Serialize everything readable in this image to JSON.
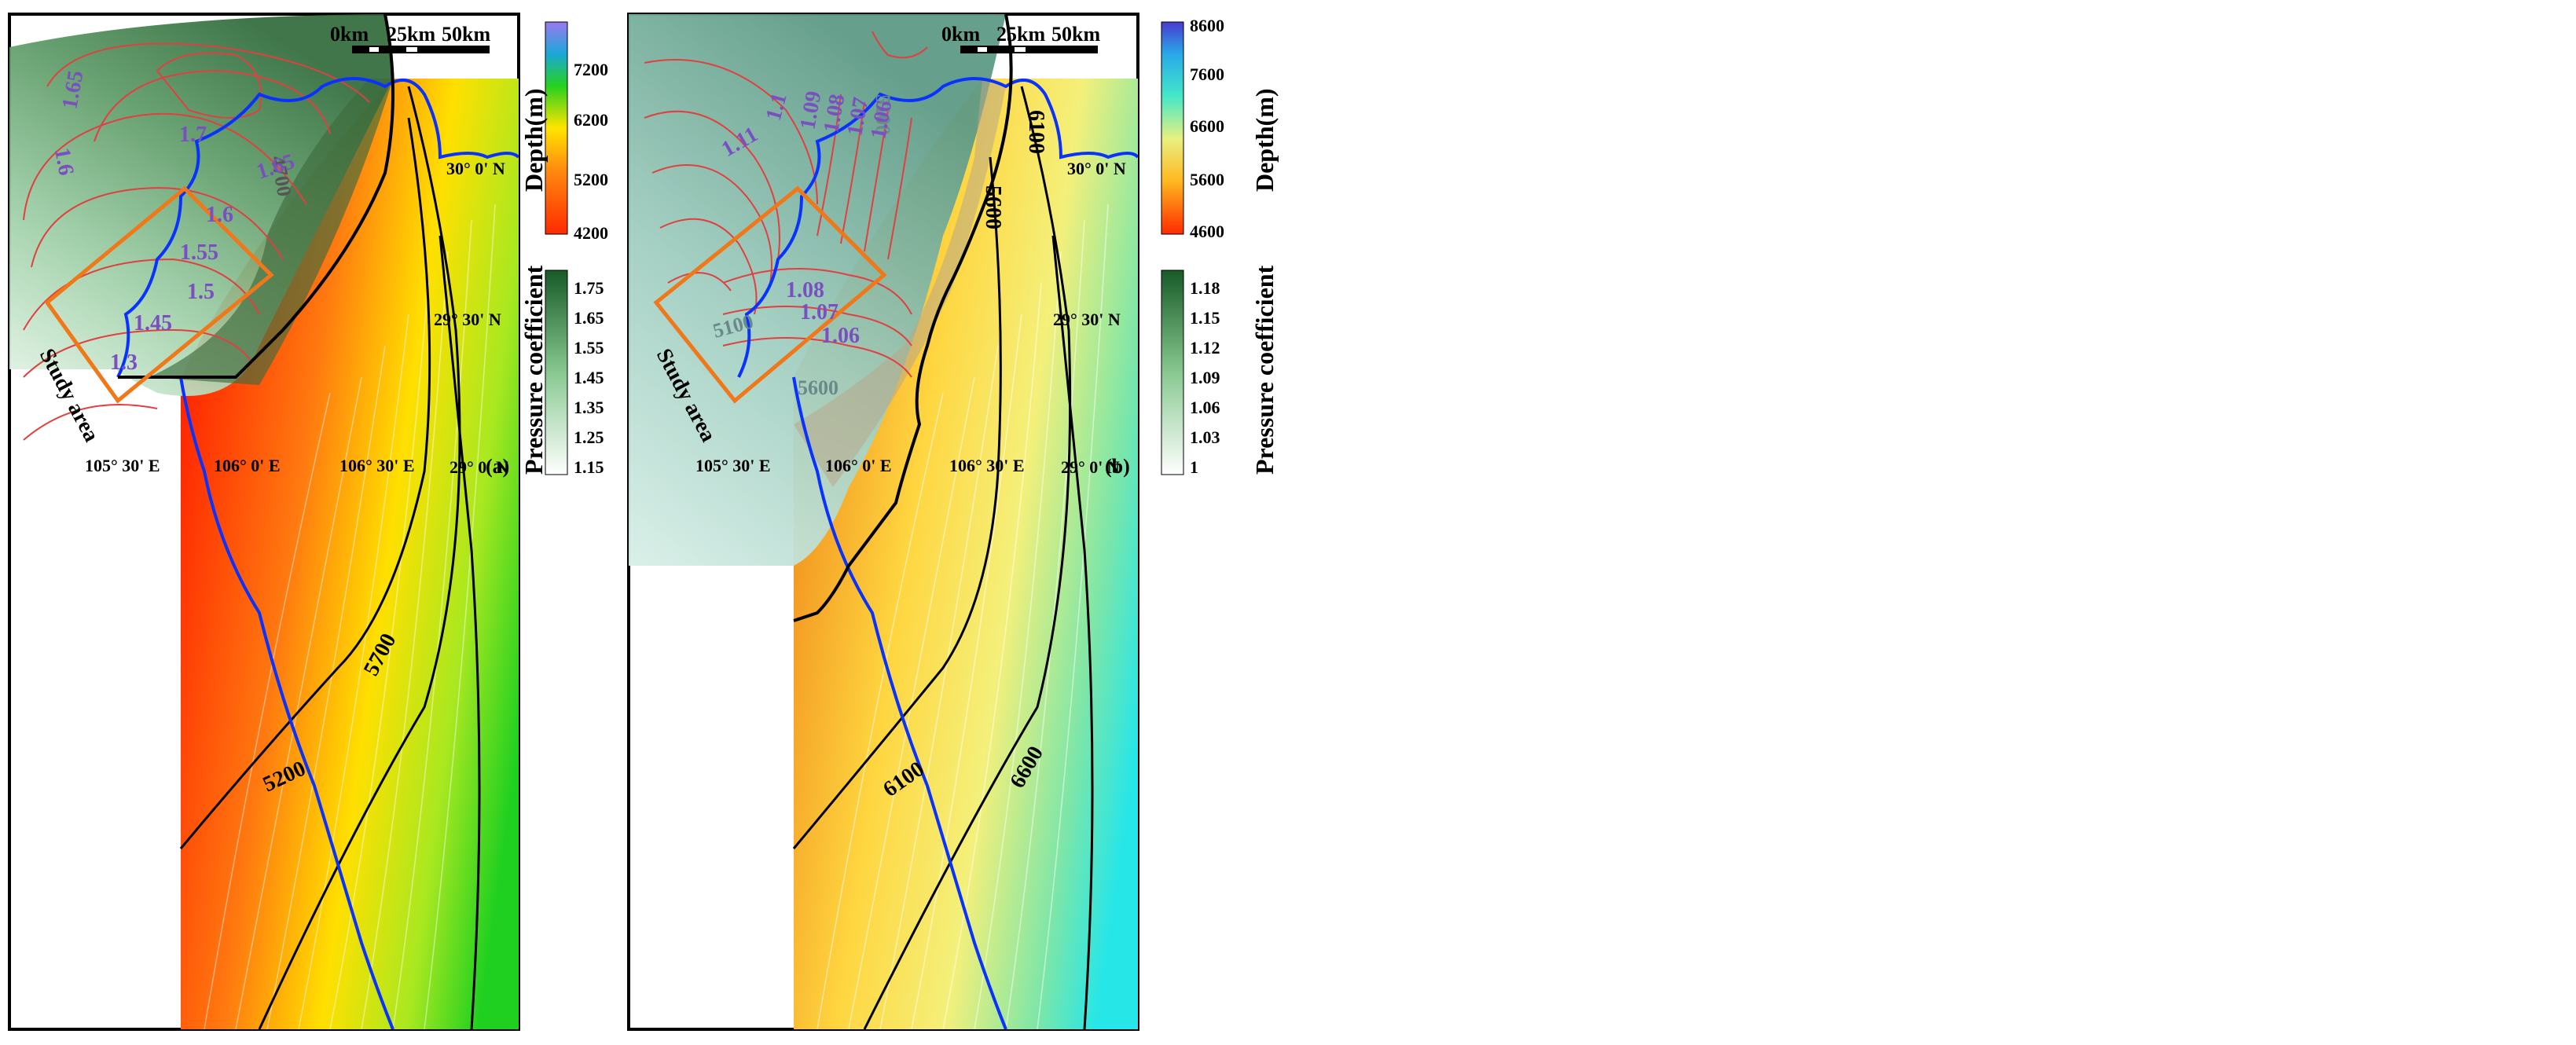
{
  "panels": [
    {
      "id": "a",
      "panel_label": "(a)",
      "scale_bar": {
        "labels": [
          "0km",
          "25km",
          "50km"
        ]
      },
      "lon_labels": [
        "105° 30' E",
        "106° 0' E",
        "106° 30' E"
      ],
      "lat_labels": [
        "30° 0' N",
        "29° 30' N",
        "29° 0' N"
      ],
      "study_area_label": "Study area",
      "depth_contour_labels": [
        "5200",
        "5700",
        "4700"
      ],
      "pressure_contour_labels": [
        "1.65",
        "1.6",
        "1.7",
        "1.65",
        "1.6",
        "1.55",
        "1.5",
        "1.45",
        "1.3"
      ],
      "depth_legend": {
        "title": "Depth(m)",
        "ticks": [
          "7200",
          "6200",
          "5200",
          "4200"
        ]
      },
      "pressure_legend": {
        "title": "Pressure coefficient",
        "ticks": [
          "1.75",
          "1.65",
          "1.55",
          "1.45",
          "1.35",
          "1.25",
          "1.15"
        ]
      },
      "colors": {
        "depth_shallow": "#ff2a00",
        "depth_mid": "#ffe400",
        "depth_deep": "#22d21c",
        "pressure_fill": "#2f6b3a",
        "boundary": "#0a32ff",
        "study_box": "#f07818"
      }
    },
    {
      "id": "b",
      "panel_label": "(b)",
      "scale_bar": {
        "labels": [
          "0km",
          "25km",
          "50km"
        ]
      },
      "lon_labels": [
        "105° 30' E",
        "106° 0' E",
        "106° 30' E"
      ],
      "lat_labels": [
        "30° 0' N",
        "29° 30' N",
        "29° 0' N"
      ],
      "study_area_label": "Study area",
      "depth_contour_labels": [
        "6100",
        "6600",
        "6100",
        "5600",
        "5100",
        "5600",
        "5100"
      ],
      "pressure_contour_labels": [
        "1.09",
        "1.08",
        "1.07",
        "1.06",
        "1.11",
        "1.1",
        "1.08",
        "1.07",
        "1.06"
      ],
      "depth_legend": {
        "title": "Depth(m)",
        "ticks": [
          "8600",
          "7600",
          "6600",
          "5600",
          "4600"
        ]
      },
      "pressure_legend": {
        "title": "Pressure coefficient",
        "ticks": [
          "1.18",
          "1.15",
          "1.12",
          "1.09",
          "1.06",
          "1.03",
          "1"
        ]
      },
      "colors": {
        "depth_shallow": "#f07a10",
        "depth_mid": "#fff04a",
        "depth_deep": "#22e8e8",
        "pressure_fill": "#8fb9b0",
        "boundary": "#0a32ff",
        "study_box": "#f07818"
      }
    }
  ]
}
